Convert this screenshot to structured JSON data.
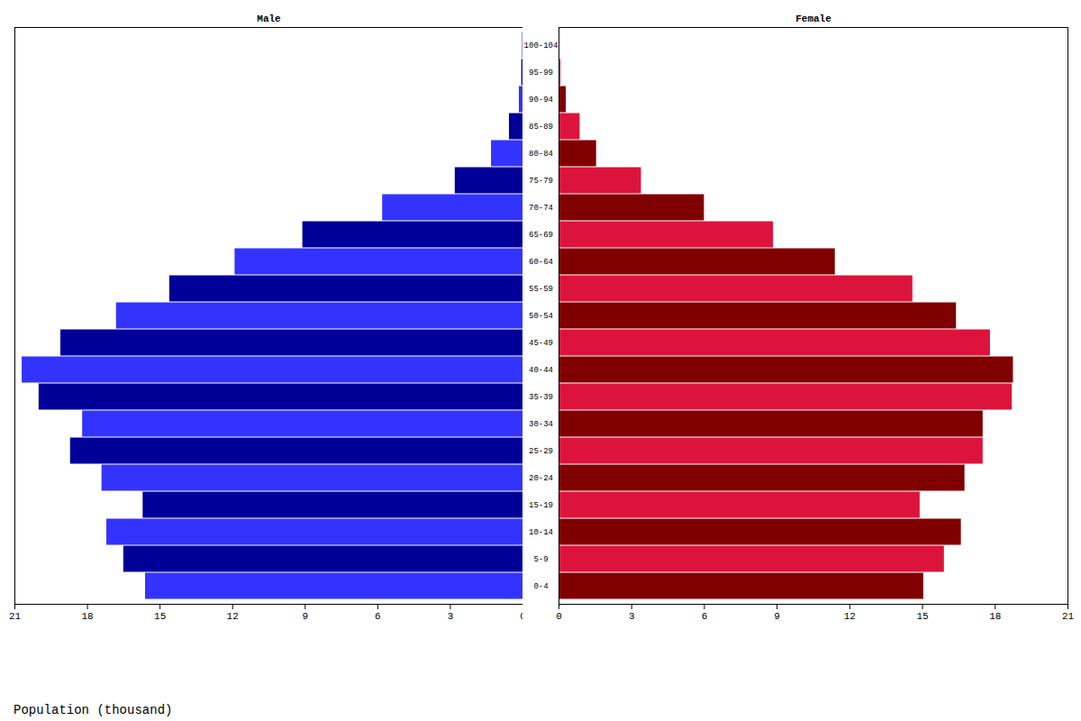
{
  "chart_data": {
    "type": "bar",
    "orientation": "horizontal",
    "xlabel": "Population (thousand)",
    "categories": [
      "0-4",
      "5-9",
      "10-14",
      "15-19",
      "20-24",
      "25-29",
      "30-34",
      "35-39",
      "40-44",
      "45-49",
      "50-54",
      "55-59",
      "60-64",
      "65-69",
      "70-74",
      "75-79",
      "80-84",
      "85-89",
      "90-94",
      "95-99",
      "100-104"
    ],
    "xlim": [
      0,
      21
    ],
    "xticks": [
      0,
      3,
      6,
      9,
      12,
      15,
      18,
      21
    ],
    "grid": false,
    "series": [
      {
        "name": "Male",
        "colors": [
          "#3333ff",
          "#000099",
          "#3333ff",
          "#000099",
          "#3333ff",
          "#000099",
          "#3333ff",
          "#000099",
          "#3333ff",
          "#000099",
          "#3333ff",
          "#000099",
          "#3333ff",
          "#000099",
          "#3333ff",
          "#000099",
          "#3333ff",
          "#000099",
          "#3333ff",
          "#000099",
          "#3333ff"
        ],
        "values": [
          15.6,
          16.5,
          17.2,
          15.7,
          17.4,
          18.7,
          18.2,
          20.0,
          20.7,
          19.1,
          16.8,
          14.6,
          11.9,
          9.1,
          5.8,
          2.8,
          1.3,
          0.56,
          0.15,
          0.05,
          0.02
        ]
      },
      {
        "name": "Female",
        "colors": [
          "#800000",
          "#dc143c",
          "#800000",
          "#dc143c",
          "#800000",
          "#dc143c",
          "#800000",
          "#dc143c",
          "#800000",
          "#dc143c",
          "#800000",
          "#dc143c",
          "#800000",
          "#dc143c",
          "#800000",
          "#dc143c",
          "#800000",
          "#dc143c",
          "#800000",
          "#dc143c",
          "#800000"
        ],
        "values": [
          15.05,
          15.9,
          16.6,
          14.9,
          16.75,
          17.5,
          17.5,
          18.7,
          18.75,
          17.8,
          16.4,
          14.6,
          11.4,
          8.85,
          6.0,
          3.4,
          1.55,
          0.87,
          0.3,
          0.08,
          0.03
        ]
      }
    ]
  }
}
